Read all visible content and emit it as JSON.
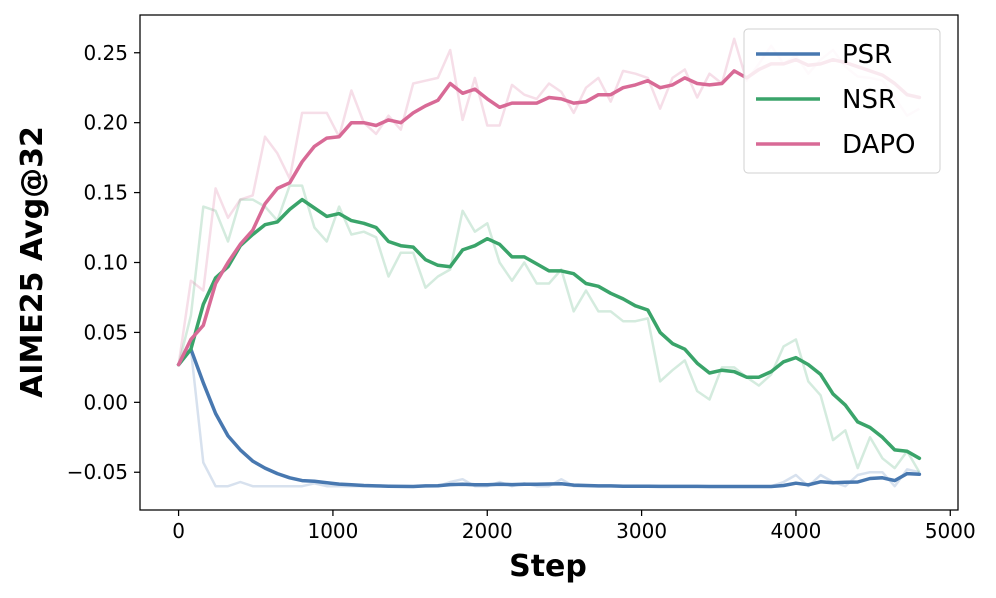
{
  "chart_data": {
    "type": "line",
    "title": "",
    "xlabel": "Step",
    "ylabel": "AIME25 Avg@32",
    "xlim": [
      -250,
      5050
    ],
    "ylim": [
      -0.077,
      0.277
    ],
    "x_ticks": [
      0,
      1000,
      2000,
      3000,
      4000,
      5000
    ],
    "y_ticks": [
      -0.05,
      0.0,
      0.05,
      0.1,
      0.15,
      0.2,
      0.25
    ],
    "x_tick_labels": [
      "0",
      "1000",
      "2000",
      "3000",
      "4000",
      "5000"
    ],
    "y_tick_labels": [
      "−0.05",
      "0.00",
      "0.05",
      "0.10",
      "0.15",
      "0.20",
      "0.25"
    ],
    "legend_position": "top-right",
    "grid": false,
    "x": [
      0,
      80,
      160,
      240,
      320,
      400,
      480,
      560,
      640,
      720,
      800,
      880,
      960,
      1040,
      1120,
      1200,
      1280,
      1360,
      1440,
      1520,
      1600,
      1680,
      1760,
      1840,
      1920,
      2000,
      2080,
      2160,
      2240,
      2320,
      2400,
      2480,
      2560,
      2640,
      2720,
      2800,
      2880,
      2960,
      3040,
      3120,
      3200,
      3280,
      3360,
      3440,
      3520,
      3600,
      3680,
      3760,
      3840,
      3920,
      4000,
      4080,
      4160,
      4240,
      4320,
      4400,
      4480,
      4560,
      4640,
      4720,
      4800
    ],
    "series": [
      {
        "name": "PSR",
        "color": "#4878b0",
        "raw": [
          0.027,
          0.038,
          -0.043,
          -0.06,
          -0.06,
          -0.057,
          -0.06,
          -0.06,
          -0.06,
          -0.06,
          -0.06,
          -0.058,
          -0.06,
          -0.06,
          -0.06,
          -0.06,
          -0.06,
          -0.06,
          -0.06,
          -0.06,
          -0.06,
          -0.06,
          -0.057,
          -0.055,
          -0.06,
          -0.06,
          -0.057,
          -0.06,
          -0.058,
          -0.06,
          -0.06,
          -0.055,
          -0.06,
          -0.06,
          -0.06,
          -0.06,
          -0.06,
          -0.06,
          -0.06,
          -0.06,
          -0.06,
          -0.06,
          -0.06,
          -0.06,
          -0.06,
          -0.06,
          -0.06,
          -0.06,
          -0.06,
          -0.057,
          -0.052,
          -0.06,
          -0.052,
          -0.057,
          -0.06,
          -0.052,
          -0.05,
          -0.05,
          -0.06,
          -0.048,
          -0.05
        ],
        "smoothed": [
          0.027,
          0.038,
          0.014,
          -0.008,
          -0.024,
          -0.034,
          -0.042,
          -0.047,
          -0.051,
          -0.054,
          -0.056,
          -0.0565,
          -0.0575,
          -0.0585,
          -0.059,
          -0.0595,
          -0.0598,
          -0.06,
          -0.0601,
          -0.0602,
          -0.0598,
          -0.0596,
          -0.0588,
          -0.0586,
          -0.059,
          -0.059,
          -0.0586,
          -0.0588,
          -0.0586,
          -0.0586,
          -0.0584,
          -0.0582,
          -0.0592,
          -0.0595,
          -0.0598,
          -0.0598,
          -0.06,
          -0.06,
          -0.06,
          -0.0601,
          -0.0601,
          -0.0601,
          -0.0601,
          -0.0602,
          -0.0602,
          -0.0602,
          -0.0602,
          -0.0602,
          -0.0602,
          -0.0595,
          -0.0578,
          -0.059,
          -0.0568,
          -0.0575,
          -0.0572,
          -0.057,
          -0.0545,
          -0.054,
          -0.056,
          -0.051,
          -0.0515
        ]
      },
      {
        "name": "NSR",
        "color": "#3aa46a",
        "raw": [
          0.027,
          0.062,
          0.14,
          0.137,
          0.115,
          0.145,
          0.145,
          0.14,
          0.13,
          0.155,
          0.155,
          0.125,
          0.115,
          0.14,
          0.12,
          0.122,
          0.118,
          0.09,
          0.107,
          0.107,
          0.082,
          0.09,
          0.095,
          0.137,
          0.122,
          0.128,
          0.1,
          0.087,
          0.1,
          0.085,
          0.085,
          0.095,
          0.065,
          0.08,
          0.065,
          0.065,
          0.058,
          0.058,
          0.06,
          0.015,
          0.023,
          0.03,
          0.008,
          0.002,
          0.025,
          0.025,
          0.018,
          0.012,
          0.02,
          0.04,
          0.045,
          0.015,
          0.005,
          -0.027,
          -0.02,
          -0.047,
          -0.025,
          -0.04,
          -0.047,
          -0.035,
          -0.05
        ],
        "smoothed": [
          0.027,
          0.038,
          0.07,
          0.089,
          0.097,
          0.112,
          0.12,
          0.127,
          0.129,
          0.138,
          0.145,
          0.139,
          0.133,
          0.135,
          0.13,
          0.128,
          0.125,
          0.115,
          0.112,
          0.111,
          0.102,
          0.098,
          0.097,
          0.109,
          0.112,
          0.117,
          0.113,
          0.104,
          0.104,
          0.099,
          0.094,
          0.094,
          0.092,
          0.085,
          0.083,
          0.078,
          0.074,
          0.069,
          0.066,
          0.05,
          0.042,
          0.038,
          0.028,
          0.021,
          0.023,
          0.022,
          0.018,
          0.018,
          0.022,
          0.029,
          0.032,
          0.027,
          0.02,
          0.006,
          -0.002,
          -0.014,
          -0.018,
          -0.025,
          -0.034,
          -0.035,
          -0.04
        ]
      },
      {
        "name": "DAPO",
        "color": "#d86a96",
        "raw": [
          0.027,
          0.087,
          0.08,
          0.153,
          0.132,
          0.145,
          0.148,
          0.19,
          0.178,
          0.16,
          0.207,
          0.207,
          0.207,
          0.19,
          0.223,
          0.2,
          0.192,
          0.205,
          0.195,
          0.228,
          0.23,
          0.232,
          0.252,
          0.202,
          0.232,
          0.198,
          0.198,
          0.227,
          0.22,
          0.217,
          0.228,
          0.222,
          0.207,
          0.225,
          0.232,
          0.215,
          0.237,
          0.235,
          0.232,
          0.21,
          0.232,
          0.238,
          0.218,
          0.235,
          0.228,
          0.26,
          0.23,
          0.242,
          0.255,
          0.242,
          0.248,
          0.235,
          0.245,
          0.252,
          0.24,
          0.233,
          0.232,
          0.23,
          0.218,
          0.205,
          0.21
        ],
        "smoothed": [
          0.027,
          0.045,
          0.055,
          0.085,
          0.1,
          0.113,
          0.123,
          0.142,
          0.153,
          0.157,
          0.172,
          0.183,
          0.189,
          0.19,
          0.2,
          0.2,
          0.198,
          0.202,
          0.2,
          0.207,
          0.212,
          0.216,
          0.228,
          0.221,
          0.224,
          0.217,
          0.211,
          0.214,
          0.214,
          0.214,
          0.218,
          0.217,
          0.214,
          0.215,
          0.22,
          0.22,
          0.225,
          0.227,
          0.23,
          0.225,
          0.227,
          0.232,
          0.228,
          0.227,
          0.228,
          0.237,
          0.232,
          0.238,
          0.242,
          0.242,
          0.245,
          0.241,
          0.242,
          0.245,
          0.243,
          0.24,
          0.237,
          0.234,
          0.228,
          0.22,
          0.218
        ]
      }
    ]
  }
}
